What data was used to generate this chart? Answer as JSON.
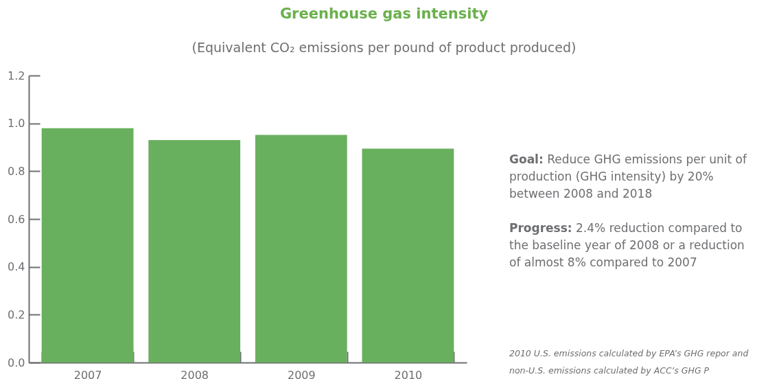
{
  "chart_data": {
    "type": "bar",
    "title": "Greenhouse gas intensity",
    "subtitle": "(Equivalent CO₂ emissions per pound of product produced)",
    "categories": [
      "2007",
      "2008",
      "2009",
      "2010"
    ],
    "values": [
      0.98,
      0.93,
      0.952,
      0.894
    ],
    "color": "#69b05e",
    "ylim": [
      0,
      1.2
    ],
    "yticks": [
      {
        "value": 0,
        "label": "0.0"
      },
      0.2,
      0.4,
      0.6,
      0.8,
      {
        "value": 1,
        "label": "1.0"
      },
      1.2
    ],
    "grid": false,
    "legend": false,
    "annotations": [
      "Goal: Reduce GHG emissions per unit of production (GHG intensity) by 20% between 2008 and 2018",
      "Progress: 2.4% reduction compared to the baseline year of 2008 or a reduction of almost 8% compared to 2007",
      "2010 U.S. emissions calculated by EPA’s GHG repor and non-U.S. emissions calculated by ACC’s GHG P"
    ]
  }
}
